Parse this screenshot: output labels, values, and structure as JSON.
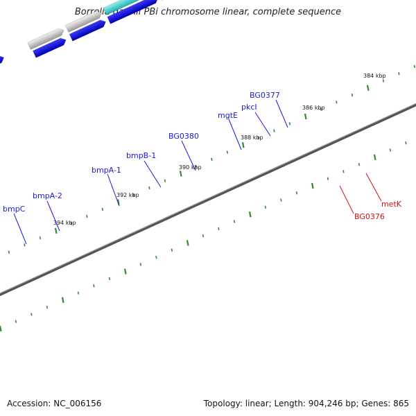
{
  "title": "Borrelia garinii PBi chromosome linear, complete sequence",
  "footer": {
    "accession": "Accession: NC_006156",
    "summary": "Topology: linear; Length: 904,246 bp; Genes: 865"
  },
  "colors": {
    "label_blue": "#1a1adb",
    "label_red": "#cc1111",
    "tick": "#2e8b2e",
    "backbone": "#888888"
  },
  "ruler_labels": [
    "384 kbp",
    "386 kbp",
    "388 kbp",
    "390 kbp",
    "392 kbp",
    "394 kbp"
  ],
  "gene_labels": [
    {
      "text": "BG0377",
      "color": "blue"
    },
    {
      "text": "pkcI",
      "color": "blue"
    },
    {
      "text": "mgtE",
      "color": "blue"
    },
    {
      "text": "BG0380",
      "color": "blue"
    },
    {
      "text": "bmpB-1",
      "color": "blue"
    },
    {
      "text": "bmpA-1",
      "color": "blue"
    },
    {
      "text": "bmpA-2",
      "color": "blue"
    },
    {
      "text": "bmpC",
      "color": "blue"
    },
    {
      "text": "metK",
      "color": "red"
    },
    {
      "text": "BG0376",
      "color": "red"
    }
  ]
}
